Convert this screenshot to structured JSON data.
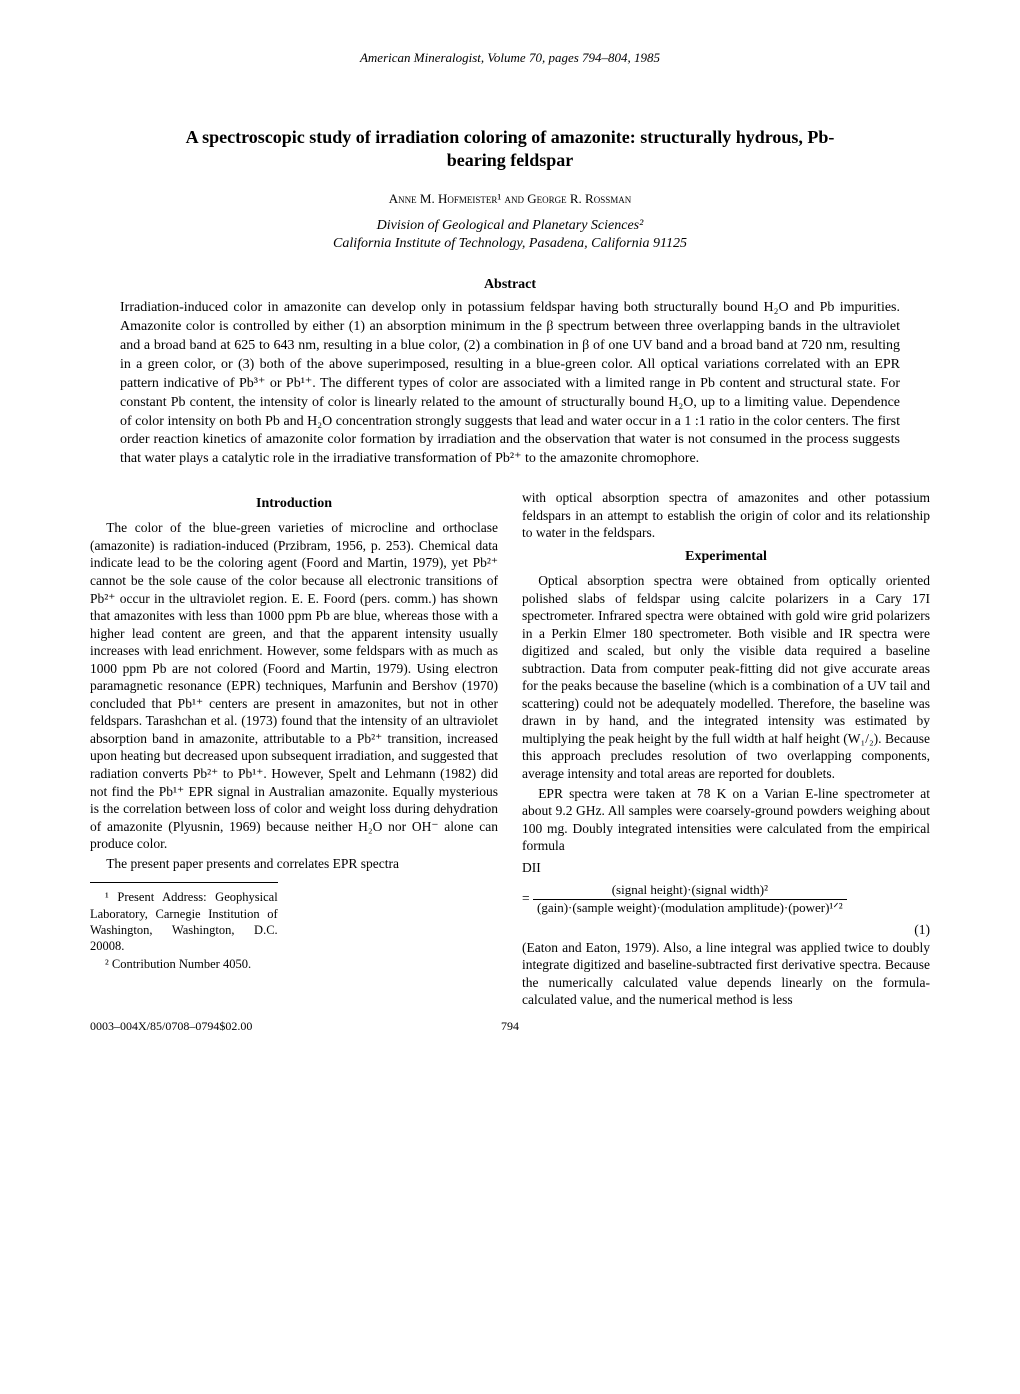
{
  "journal_line": "American Mineralogist, Volume 70, pages 794–804, 1985",
  "title": "A spectroscopic study of irradiation coloring of amazonite: structurally hydrous, Pb-bearing feldspar",
  "authors": "Anne M. Hofmeister¹ and George R. Rossman",
  "affiliation_line1": "Division of Geological and Planetary Sciences²",
  "affiliation_line2": "California Institute of Technology, Pasadena, California 91125",
  "abstract_heading": "Abstract",
  "abstract_body": "Irradiation-induced color in amazonite can develop only in potassium feldspar having both structurally bound H₂O and Pb impurities. Amazonite color is controlled by either (1) an absorption minimum in the β spectrum between three overlapping bands in the ultraviolet and a broad band at 625 to 643 nm, resulting in a blue color, (2) a combination in β of one UV band and a broad band at 720 nm, resulting in a green color, or (3) both of the above superimposed, resulting in a blue-green color. All optical variations correlated with an EPR pattern indicative of Pb³⁺ or Pb¹⁺. The different types of color are associated with a limited range in Pb content and structural state. For constant Pb content, the intensity of color is linearly related to the amount of structurally bound H₂O, up to a limiting value. Dependence of color intensity on both Pb and H₂O concentration strongly suggests that lead and water occur in a 1 :1 ratio in the color centers. The first order reaction kinetics of amazonite color formation by irradiation and the observation that water is not consumed in the process suggests that water plays a catalytic role in the irradiative transformation of Pb²⁺ to the amazonite chromophore.",
  "intro_heading": "Introduction",
  "intro_p1": "The color of the blue-green varieties of microcline and orthoclase (amazonite) is radiation-induced (Przibram, 1956, p. 253). Chemical data indicate lead to be the coloring agent (Foord and Martin, 1979), yet Pb²⁺ cannot be the sole cause of the color because all electronic transitions of Pb²⁺ occur in the ultraviolet region. E. E. Foord (pers. comm.) has shown that amazonites with less than 1000 ppm Pb are blue, whereas those with a higher lead content are green, and that the apparent intensity usually increases with lead enrichment. However, some feldspars with as much as 1000 ppm Pb are not colored (Foord and Martin, 1979). Using electron paramagnetic resonance (EPR) techniques, Marfunin and Bershov (1970) concluded that Pb¹⁺ centers are present in amazonites, but not in other feldspars. Tarashchan et al. (1973) found that the intensity of an ultraviolet absorption band in amazonite, attributable to a Pb²⁺ transition, increased upon heating but decreased upon subsequent irradiation, and suggested that radiation converts Pb²⁺ to Pb¹⁺. However, Spelt and Lehmann (1982) did not find the Pb¹⁺ EPR signal in Australian amazonite. Equally mysterious is the correlation between loss of color and weight loss during dehydration of amazonite (Plyusnin, 1969) because neither H₂O nor OH⁻ alone can produce color.",
  "intro_p2": "The present paper presents and correlates EPR spectra",
  "intro_p2b": "with optical absorption spectra of amazonites and other potassium feldspars in an attempt to establish the origin of color and its relationship to water in the feldspars.",
  "exp_heading": "Experimental",
  "exp_p1": "Optical absorption spectra were obtained from optically oriented polished slabs of feldspar using calcite polarizers in a Cary 17I spectrometer. Infrared spectra were obtained with gold wire grid polarizers in a Perkin Elmer 180 spectrometer. Both visible and IR spectra were digitized and scaled, but only the visible data required a baseline subtraction. Data from computer peak-fitting did not give accurate areas for the peaks because the baseline (which is a combination of a UV tail and scattering) could not be adequately modelled. Therefore, the baseline was drawn in by hand, and the integrated intensity was estimated by multiplying the peak height by the full width at half height (W₁/₂). Because this approach precludes resolution of two overlapping components, average intensity and total areas are reported for doublets.",
  "exp_p2": "EPR spectra were taken at 78 K on a Varian E-line spectrometer at about 9.2 GHz. All samples were coarsely-ground powders weighing about 100 mg. Doubly integrated intensities were calculated from the empirical formula",
  "formula_label": "DII",
  "formula_numerator": "(signal height)·(signal width)²",
  "formula_denominator": "(gain)·(sample weight)·(modulation amplitude)·(power)¹ᐟ²",
  "formula_number": "(1)",
  "exp_p3": "(Eaton and Eaton, 1979). Also, a line integral was applied twice to doubly integrate digitized and baseline-subtracted first derivative spectra. Because the numerically calculated value depends linearly on the formula-calculated value, and the numerical method is less",
  "footnote1": "¹ Present Address: Geophysical Laboratory, Carnegie Institution of Washington, Washington, D.C. 20008.",
  "footnote2": "² Contribution Number 4050.",
  "footer_code": "0003–004X/85/0708–0794$02.00",
  "page_number": "794"
}
